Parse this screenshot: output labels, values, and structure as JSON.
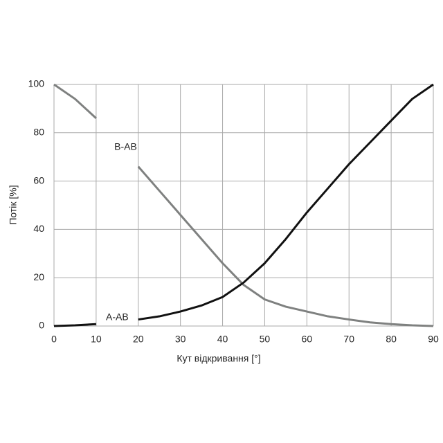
{
  "chart_data": {
    "type": "line",
    "x_label": "Кут відкривання [°]",
    "y_label": "Потік [%]",
    "x": [
      0,
      5,
      10,
      15,
      20,
      25,
      30,
      35,
      40,
      45,
      50,
      55,
      60,
      65,
      70,
      75,
      80,
      85,
      90
    ],
    "series": [
      {
        "name": "B-AB",
        "color": "#7f8180",
        "values": [
          100,
          94,
          86,
          null,
          66,
          56,
          46,
          36,
          26,
          17,
          11,
          8,
          6,
          4,
          2.7,
          1.5,
          0.8,
          0.3,
          0
        ]
      },
      {
        "name": "A-AB",
        "color": "#111111",
        "values": [
          0,
          0.3,
          0.8,
          null,
          2.7,
          4,
          6,
          8.5,
          12,
          18,
          26,
          36,
          47,
          57,
          67,
          76,
          85,
          94,
          100
        ]
      }
    ],
    "annotations": [
      {
        "text": "B-AB",
        "x": 17,
        "y": 74
      },
      {
        "text": "A-AB",
        "x": 15,
        "y": 3.5
      }
    ],
    "xlim": [
      0,
      90
    ],
    "ylim": [
      0,
      100
    ],
    "xticks": [
      0,
      10,
      20,
      30,
      40,
      50,
      60,
      70,
      80,
      90
    ],
    "yticks": [
      0,
      20,
      40,
      60,
      80,
      100
    ],
    "grid": true
  }
}
